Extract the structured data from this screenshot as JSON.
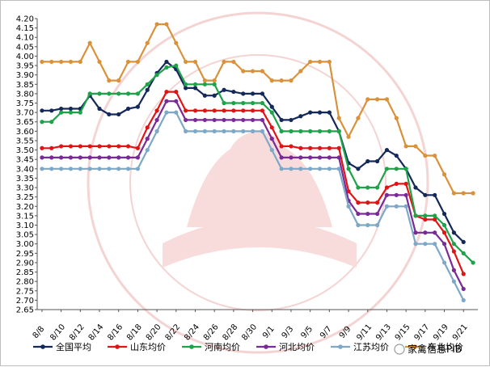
{
  "chart_data": {
    "type": "line",
    "title": "",
    "xlabel": "",
    "ylabel": "",
    "ylim": [
      2.65,
      4.2
    ],
    "ystep": 0.05,
    "grid": false,
    "legend_position": "bottom",
    "x_tick_labels": [
      "8/8",
      "8/10",
      "8/12",
      "8/14",
      "8/16",
      "8/18",
      "8/20",
      "8/22",
      "8/24",
      "8/26",
      "8/28",
      "8/30",
      "9/1",
      "9/3",
      "9/5",
      "9/7",
      "9/9",
      "9/11",
      "9/13",
      "9/15",
      "9/17",
      "9/19",
      "9/21"
    ],
    "x": [
      "8/8",
      "8/9",
      "8/10",
      "8/11",
      "8/12",
      "8/13",
      "8/14",
      "8/15",
      "8/16",
      "8/17",
      "8/18",
      "8/19",
      "8/20",
      "8/21",
      "8/22",
      "8/23",
      "8/24",
      "8/25",
      "8/26",
      "8/27",
      "8/28",
      "8/29",
      "8/30",
      "8/31",
      "9/1",
      "9/2",
      "9/3",
      "9/4",
      "9/5",
      "9/6",
      "9/7",
      "9/8",
      "9/9",
      "9/10",
      "9/11",
      "9/12",
      "9/13",
      "9/14",
      "9/15",
      "9/16",
      "9/17",
      "9/18",
      "9/19",
      "9/20",
      "9/21",
      "9/22"
    ],
    "series": [
      {
        "name": "全国平均",
        "color": "#14285a",
        "values": [
          3.71,
          3.71,
          3.72,
          3.72,
          3.72,
          3.79,
          3.72,
          3.69,
          3.69,
          3.72,
          3.73,
          3.82,
          3.91,
          3.97,
          3.93,
          3.83,
          3.83,
          3.79,
          3.79,
          3.82,
          3.81,
          3.8,
          3.8,
          3.8,
          3.73,
          3.66,
          3.66,
          3.68,
          3.7,
          3.7,
          3.7,
          3.6,
          3.43,
          3.4,
          3.44,
          3.44,
          3.5,
          3.47,
          3.4,
          3.3,
          3.26,
          3.26,
          3.16,
          3.06,
          3.01,
          null
        ]
      },
      {
        "name": "山东均价",
        "color": "#e01414",
        "values": [
          3.51,
          3.51,
          3.52,
          3.52,
          3.52,
          3.52,
          3.52,
          3.52,
          3.52,
          3.52,
          3.51,
          3.62,
          3.71,
          3.81,
          3.81,
          3.71,
          3.71,
          3.71,
          3.71,
          3.71,
          3.71,
          3.71,
          3.71,
          3.71,
          3.62,
          3.52,
          3.52,
          3.51,
          3.51,
          3.51,
          3.51,
          3.51,
          3.28,
          3.22,
          3.22,
          3.22,
          3.3,
          3.32,
          3.32,
          3.15,
          3.13,
          3.13,
          3.06,
          2.96,
          2.84,
          null
        ]
      },
      {
        "name": "河南均价",
        "color": "#1fa34a",
        "values": [
          3.65,
          3.65,
          3.7,
          3.7,
          3.7,
          3.8,
          3.8,
          3.8,
          3.8,
          3.8,
          3.8,
          3.85,
          3.9,
          3.94,
          3.95,
          3.85,
          3.85,
          3.85,
          3.85,
          3.75,
          3.75,
          3.75,
          3.75,
          3.75,
          3.7,
          3.6,
          3.6,
          3.6,
          3.6,
          3.6,
          3.6,
          3.6,
          3.4,
          3.3,
          3.3,
          3.3,
          3.4,
          3.4,
          3.4,
          3.15,
          3.15,
          3.15,
          3.1,
          3.0,
          2.95,
          2.9
        ]
      },
      {
        "name": "河北均价",
        "color": "#7a2a96",
        "values": [
          3.46,
          3.46,
          3.46,
          3.46,
          3.46,
          3.46,
          3.46,
          3.46,
          3.46,
          3.46,
          3.46,
          3.56,
          3.66,
          3.76,
          3.76,
          3.66,
          3.66,
          3.66,
          3.66,
          3.66,
          3.66,
          3.66,
          3.66,
          3.66,
          3.56,
          3.46,
          3.46,
          3.46,
          3.46,
          3.46,
          3.46,
          3.46,
          3.23,
          3.16,
          3.16,
          3.16,
          3.26,
          3.26,
          3.26,
          3.06,
          3.06,
          3.06,
          3.0,
          2.86,
          2.76,
          null
        ]
      },
      {
        "name": "江苏均价",
        "color": "#7ea8c8",
        "values": [
          3.4,
          3.4,
          3.4,
          3.4,
          3.4,
          3.4,
          3.4,
          3.4,
          3.4,
          3.4,
          3.4,
          3.5,
          3.6,
          3.7,
          3.7,
          3.6,
          3.6,
          3.6,
          3.6,
          3.6,
          3.6,
          3.6,
          3.6,
          3.6,
          3.5,
          3.4,
          3.4,
          3.4,
          3.4,
          3.4,
          3.4,
          3.4,
          3.2,
          3.1,
          3.1,
          3.1,
          3.2,
          3.2,
          3.2,
          3.0,
          3.0,
          3.0,
          2.9,
          2.8,
          2.7,
          null
        ]
      },
      {
        "name": "东北均价",
        "color": "#d9913a",
        "values": [
          3.97,
          3.97,
          3.97,
          3.97,
          3.97,
          4.07,
          3.97,
          3.87,
          3.87,
          3.97,
          3.97,
          4.07,
          4.17,
          4.17,
          4.07,
          3.97,
          3.97,
          3.87,
          3.87,
          3.97,
          3.97,
          3.92,
          3.92,
          3.92,
          3.87,
          3.87,
          3.87,
          3.92,
          3.97,
          3.97,
          3.97,
          3.67,
          3.57,
          3.67,
          3.77,
          3.77,
          3.77,
          3.67,
          3.52,
          3.52,
          3.47,
          3.47,
          3.37,
          3.27,
          3.27,
          3.27
        ]
      }
    ]
  },
  "legend": {
    "items": [
      {
        "label": "全国平均"
      },
      {
        "label": "山东均价"
      },
      {
        "label": "河南均价"
      },
      {
        "label": "河北均价"
      },
      {
        "label": "江苏均价"
      },
      {
        "label": "东北均价"
      }
    ]
  },
  "watermark": {
    "text": "家禽信息PIB",
    "color": "#e8a0a0"
  }
}
